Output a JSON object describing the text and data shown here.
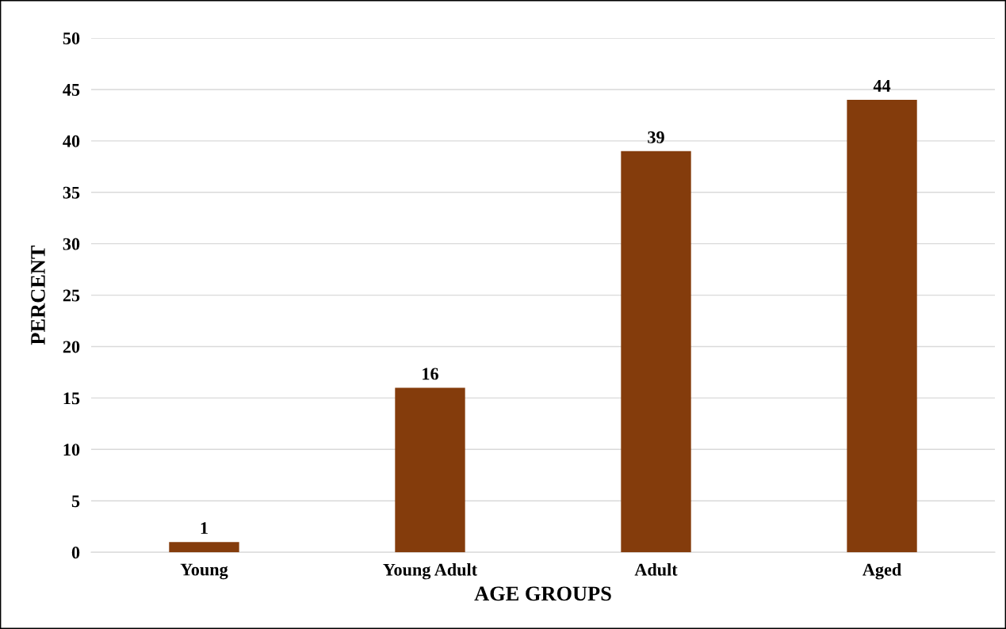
{
  "chart_data": {
    "type": "bar",
    "xlabel": "AGE GROUPS",
    "ylabel": "PERCENT",
    "categories": [
      "Young",
      "Young Adult",
      "Adult",
      "Aged"
    ],
    "values": [
      1,
      16,
      39,
      44
    ],
    "color": "#843c0c",
    "ylim": [
      0,
      50
    ],
    "yticks": [
      0,
      5,
      10,
      15,
      20,
      25,
      30,
      35,
      40,
      45,
      50
    ],
    "grid": "y",
    "data_labels": true
  }
}
